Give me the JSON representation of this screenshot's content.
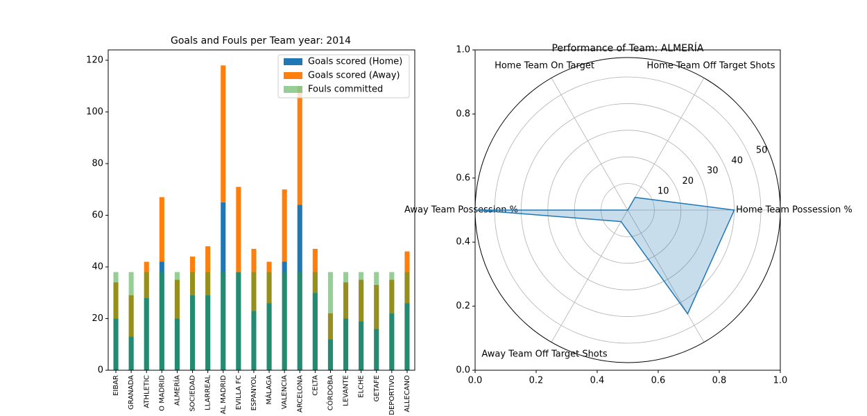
{
  "chart_data": [
    {
      "type": "bar",
      "title": "Goals and Fouls per Team year: 2014",
      "categories": [
        "EIBAR",
        "GRANADA",
        "ATHLETIC",
        "O MADRID",
        "ALMERÍA",
        "SOCIEDAD",
        "LLARREAL",
        "AL MADRID",
        "EVILLA FC",
        "ESPANYOL",
        "MÁLAGA",
        "VALENCIA",
        "ARCELONA",
        "CELTA",
        "CÓRDOBA",
        "LEVANTE",
        "ELCHE",
        "GETAFE",
        "DEPORTIVO",
        "ALLECANO"
      ],
      "series": [
        {
          "name": "Goals scored (Home)",
          "color": "#1f77b4",
          "stacked": false,
          "alpha": 1,
          "values": [
            20,
            13,
            28,
            42,
            20,
            29,
            29,
            65,
            38,
            23,
            26,
            42,
            64,
            30,
            12,
            20,
            19,
            16,
            22,
            26
          ]
        },
        {
          "name": "Goals scored (Away)",
          "color": "#ff7f0e",
          "stacked": true,
          "alpha": 1,
          "values": [
            14,
            16,
            14,
            25,
            15,
            15,
            19,
            53,
            33,
            24,
            16,
            28,
            46,
            17,
            10,
            14,
            16,
            17,
            13,
            20
          ]
        },
        {
          "name": "Fouls committed",
          "color": "#2ca02c",
          "stacked": false,
          "alpha": 0.5,
          "values": [
            38,
            38,
            38,
            38,
            38,
            38,
            38,
            38,
            38,
            38,
            38,
            38,
            38,
            38,
            38,
            38,
            38,
            38,
            38,
            38
          ]
        }
      ],
      "ylim": [
        0,
        124
      ],
      "yticks": [
        0,
        20,
        40,
        60,
        80,
        100,
        120
      ],
      "legend": "upper right"
    },
    {
      "type": "radar",
      "title": "Performance of Team: ALMERÍA",
      "categories": [
        "Home Team Possession %",
        "Home Team Off Target Shots",
        "Home Team On Target",
        "Away Team Possession %",
        "Away Team Off Target Shots",
        null
      ],
      "values": [
        40,
        5.5,
        0,
        57,
        5,
        45
      ],
      "color": "#1f77b4",
      "rlim": [
        0,
        57.3
      ],
      "rticks": [
        10,
        20,
        30,
        40,
        50
      ],
      "xlim": [
        0,
        1
      ],
      "ylim": [
        0,
        1
      ],
      "xticks": [
        {
          "value": 0,
          "label": "0.0"
        },
        {
          "value": 0.2,
          "label": "0.2"
        },
        {
          "value": 0.4,
          "label": "0.4"
        },
        {
          "value": 0.6,
          "label": "0.6"
        },
        {
          "value": 0.8,
          "label": "0.8"
        },
        {
          "value": 1,
          "label": "1.0"
        }
      ],
      "yticks": [
        {
          "value": 0,
          "label": "0.0"
        },
        {
          "value": 0.2,
          "label": "0.2"
        },
        {
          "value": 0.4,
          "label": "0.4"
        },
        {
          "value": 0.6,
          "label": "0.6"
        },
        {
          "value": 0.8,
          "label": "0.8"
        },
        {
          "value": 1,
          "label": "1.0"
        }
      ]
    }
  ]
}
